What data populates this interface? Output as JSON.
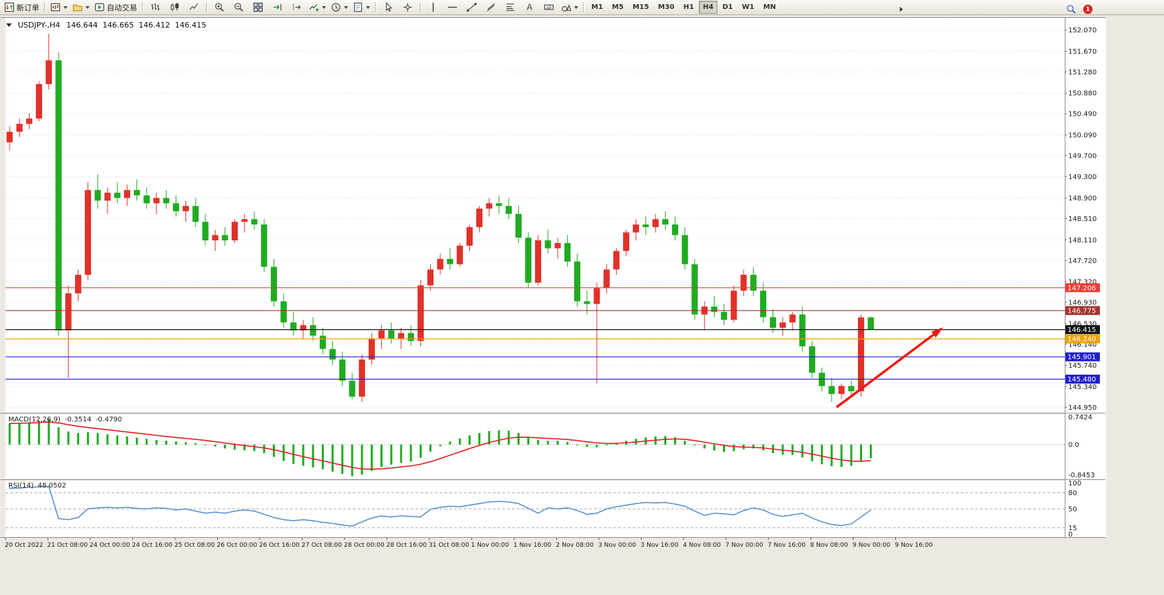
{
  "colors": {
    "window_bg": "#ece9e2",
    "chart_bg": "#ffffff",
    "grid": "#dcdcdc",
    "up": "#e0312a",
    "down": "#21ab21"
  },
  "toolbar": {
    "items": [
      {
        "name": "new-order-button",
        "icon": "new-order-icon",
        "label": "新订单"
      },
      {
        "sep": true
      },
      {
        "name": "new-chart-button",
        "icon": "new-chart-icon",
        "dropdown": true
      },
      {
        "name": "profiles-button",
        "icon": "profiles-icon",
        "dropdown": true
      },
      {
        "name": "auto-trading-button",
        "icon": "autotrade-icon",
        "label": "自动交易"
      },
      {
        "sep": true
      },
      {
        "name": "bar-chart-button",
        "icon": "bar-chart-icon"
      },
      {
        "name": "candlestick-chart-button",
        "icon": "candle-chart-icon"
      },
      {
        "name": "line-chart-button",
        "icon": "line-chart-icon"
      },
      {
        "sep": true
      },
      {
        "name": "zoom-in-button",
        "icon": "zoom-in-icon"
      },
      {
        "name": "zoom-out-button",
        "icon": "zoom-out-icon"
      },
      {
        "name": "tile-windows-button",
        "icon": "tile-windows-icon"
      },
      {
        "name": "auto-scroll-button",
        "icon": "auto-scroll-icon"
      },
      {
        "name": "chart-shift-button",
        "icon": "chart-shift-icon"
      },
      {
        "name": "indicators-button",
        "icon": "indicators-icon",
        "dropdown": true
      },
      {
        "name": "periods-button",
        "icon": "periods-icon",
        "dropdown": true
      },
      {
        "name": "templates-button",
        "icon": "templates-icon",
        "dropdown": true
      },
      {
        "sep": true
      },
      {
        "name": "cursor-button",
        "icon": "cursor-icon"
      },
      {
        "name": "crosshair-button",
        "icon": "crosshair-icon"
      },
      {
        "sep": true
      },
      {
        "name": "vertical-line-button",
        "icon": "vline-icon"
      },
      {
        "name": "horizontal-line-button",
        "icon": "hline-icon"
      },
      {
        "name": "trendline-button",
        "icon": "trendline-icon"
      },
      {
        "name": "equidistant-channel-button",
        "icon": "channel-icon"
      },
      {
        "name": "fibonacci-button",
        "icon": "fibonacci-icon"
      },
      {
        "name": "text-button",
        "icon": "text-icon"
      },
      {
        "name": "text-label-button",
        "icon": "label-icon"
      },
      {
        "name": "arrows-button",
        "icon": "shapes-icon",
        "dropdown": true
      },
      {
        "sep": true
      }
    ],
    "timeframes": [
      "M1",
      "M5",
      "M15",
      "M30",
      "H1",
      "H4",
      "D1",
      "W1",
      "MN"
    ],
    "active_timeframe": "H4",
    "notifications_badge": "1"
  },
  "chart_data": {
    "type": "candlestick",
    "title": "USDJPY-,H4",
    "symbol": "USDJPY-",
    "timeframe": "H4",
    "current_bar": {
      "open": "146.644",
      "high": "146.665",
      "low": "146.412",
      "close": "146.415"
    },
    "up_color": "#e0312a",
    "down_color": "#21ab21",
    "ylim": [
      144.85,
      152.3
    ],
    "y_ticks": [
      "152.070",
      "151.670",
      "151.280",
      "150.880",
      "150.490",
      "150.090",
      "149.700",
      "149.300",
      "148.900",
      "148.510",
      "148.110",
      "147.720",
      "147.320",
      "146.930",
      "146.530",
      "146.140",
      "145.740",
      "145.340",
      "144.950"
    ],
    "x_labels": [
      "20 Oct 2022",
      "21 Oct 08:00",
      "24 Oct 00:00",
      "24 Oct 16:00",
      "25 Oct 08:00",
      "26 Oct 00:00",
      "26 Oct 16:00",
      "27 Oct 08:00",
      "28 Oct 00:00",
      "28 Oct 16:00",
      "31 Oct 08:00",
      "1 Nov 00:00",
      "1 Nov 16:00",
      "2 Nov 08:00",
      "3 Nov 00:00",
      "3 Nov 16:00",
      "4 Nov 08:00",
      "7 Nov 00:00",
      "7 Nov 16:00",
      "8 Nov 08:00",
      "9 Nov 00:00",
      "9 Nov 16:00"
    ],
    "ohlc": [
      [
        149.95,
        150.25,
        149.8,
        150.15
      ],
      [
        150.15,
        150.4,
        150.05,
        150.3
      ],
      [
        150.3,
        150.5,
        150.2,
        150.4
      ],
      [
        150.4,
        151.1,
        150.35,
        151.05
      ],
      [
        151.05,
        152.0,
        150.95,
        151.5
      ],
      [
        151.5,
        151.65,
        146.3,
        146.4
      ],
      [
        146.4,
        147.25,
        145.5,
        147.1
      ],
      [
        147.1,
        147.55,
        146.95,
        147.45
      ],
      [
        147.45,
        149.2,
        147.35,
        149.05
      ],
      [
        149.05,
        149.35,
        148.7,
        148.85
      ],
      [
        148.85,
        149.1,
        148.6,
        149.0
      ],
      [
        149.0,
        149.2,
        148.8,
        148.9
      ],
      [
        148.9,
        149.15,
        148.75,
        149.05
      ],
      [
        149.05,
        149.25,
        148.85,
        148.95
      ],
      [
        148.95,
        149.1,
        148.7,
        148.8
      ],
      [
        148.8,
        149.0,
        148.6,
        148.9
      ],
      [
        148.9,
        149.05,
        148.7,
        148.8
      ],
      [
        148.8,
        148.95,
        148.55,
        148.65
      ],
      [
        148.65,
        148.85,
        148.45,
        148.75
      ],
      [
        148.75,
        148.9,
        148.35,
        148.45
      ],
      [
        148.45,
        148.6,
        148.0,
        148.1
      ],
      [
        148.1,
        148.3,
        147.9,
        148.2
      ],
      [
        148.2,
        148.35,
        148.0,
        148.1
      ],
      [
        148.1,
        148.5,
        148.05,
        148.45
      ],
      [
        148.45,
        148.6,
        148.25,
        148.5
      ],
      [
        148.5,
        148.65,
        148.3,
        148.4
      ],
      [
        148.4,
        148.5,
        147.5,
        147.6
      ],
      [
        147.6,
        147.75,
        146.85,
        146.95
      ],
      [
        146.95,
        147.1,
        146.45,
        146.55
      ],
      [
        146.55,
        146.75,
        146.3,
        146.4
      ],
      [
        146.4,
        146.6,
        146.25,
        146.5
      ],
      [
        146.5,
        146.65,
        146.2,
        146.3
      ],
      [
        146.3,
        146.45,
        145.95,
        146.05
      ],
      [
        146.05,
        146.2,
        145.75,
        145.85
      ],
      [
        145.85,
        146.0,
        145.35,
        145.45
      ],
      [
        145.45,
        145.6,
        145.1,
        145.15
      ],
      [
        145.15,
        145.95,
        145.05,
        145.85
      ],
      [
        145.85,
        146.35,
        145.75,
        146.25
      ],
      [
        146.25,
        146.5,
        146.05,
        146.4
      ],
      [
        146.4,
        146.55,
        146.15,
        146.25
      ],
      [
        146.25,
        146.45,
        146.05,
        146.35
      ],
      [
        146.35,
        146.5,
        146.1,
        146.2
      ],
      [
        146.2,
        147.35,
        146.1,
        147.25
      ],
      [
        147.25,
        147.65,
        147.15,
        147.55
      ],
      [
        147.55,
        147.85,
        147.45,
        147.75
      ],
      [
        147.75,
        147.95,
        147.55,
        147.65
      ],
      [
        147.65,
        148.05,
        147.6,
        148.0
      ],
      [
        148.0,
        148.4,
        147.9,
        148.35
      ],
      [
        148.35,
        148.75,
        148.25,
        148.7
      ],
      [
        148.7,
        148.9,
        148.55,
        148.8
      ],
      [
        148.8,
        148.95,
        148.6,
        148.75
      ],
      [
        148.75,
        148.9,
        148.5,
        148.6
      ],
      [
        148.6,
        148.75,
        148.05,
        148.15
      ],
      [
        148.15,
        148.25,
        147.2,
        147.3
      ],
      [
        147.3,
        148.2,
        147.25,
        148.1
      ],
      [
        148.1,
        148.3,
        147.85,
        147.95
      ],
      [
        147.95,
        148.15,
        147.75,
        148.05
      ],
      [
        148.05,
        148.2,
        147.6,
        147.7
      ],
      [
        147.7,
        147.85,
        146.85,
        146.95
      ],
      [
        146.95,
        147.15,
        146.7,
        146.9
      ],
      [
        146.9,
        147.3,
        145.4,
        147.2
      ],
      [
        147.2,
        147.65,
        147.1,
        147.55
      ],
      [
        147.55,
        147.95,
        147.45,
        147.9
      ],
      [
        147.9,
        148.3,
        147.8,
        148.25
      ],
      [
        148.25,
        148.5,
        148.1,
        148.4
      ],
      [
        148.4,
        148.55,
        148.2,
        148.35
      ],
      [
        148.35,
        148.6,
        148.25,
        148.5
      ],
      [
        148.5,
        148.65,
        148.3,
        148.4
      ],
      [
        148.4,
        148.55,
        148.1,
        148.2
      ],
      [
        148.2,
        148.35,
        147.55,
        147.65
      ],
      [
        147.65,
        147.75,
        146.6,
        146.7
      ],
      [
        146.7,
        146.95,
        146.4,
        146.85
      ],
      [
        146.85,
        147.05,
        146.65,
        146.75
      ],
      [
        146.75,
        146.9,
        146.5,
        146.6
      ],
      [
        146.6,
        147.25,
        146.55,
        147.15
      ],
      [
        147.15,
        147.55,
        147.05,
        147.45
      ],
      [
        147.45,
        147.6,
        147.05,
        147.15
      ],
      [
        147.15,
        147.3,
        146.55,
        146.65
      ],
      [
        146.65,
        146.8,
        146.35,
        146.45
      ],
      [
        146.45,
        146.65,
        146.3,
        146.55
      ],
      [
        146.55,
        146.75,
        146.4,
        146.7
      ],
      [
        146.7,
        146.85,
        146.0,
        146.1
      ],
      [
        146.1,
        146.2,
        145.5,
        145.6
      ],
      [
        145.6,
        145.7,
        145.25,
        145.35
      ],
      [
        145.35,
        145.5,
        145.05,
        145.2
      ],
      [
        145.2,
        145.4,
        145.1,
        145.35
      ],
      [
        145.35,
        145.45,
        145.15,
        145.25
      ],
      [
        145.25,
        146.7,
        145.15,
        146.644
      ],
      [
        146.644,
        146.665,
        146.412,
        146.415
      ]
    ],
    "hlines": [
      {
        "label": "147.206",
        "price": 147.206,
        "color": "#f23c32"
      },
      {
        "label": "146.775",
        "price": 146.775,
        "color": "#a83232"
      },
      {
        "label": "146.415",
        "price": 146.415,
        "color": "#141414",
        "role": "current-price"
      },
      {
        "label": "146.240",
        "price": 146.24,
        "color": "#f0a000"
      },
      {
        "label": "145.901",
        "price": 145.901,
        "color": "#2020cc"
      },
      {
        "label": "145.480",
        "price": 145.48,
        "color": "#2020cc"
      }
    ],
    "annotations": [
      {
        "type": "arrow",
        "x1_bar": 84.5,
        "price1": 144.95,
        "x2_bar": 95.2,
        "price2": 146.43,
        "color": "#f21616"
      }
    ],
    "indicators": [
      {
        "name": "MACD",
        "params": "(12,26,9)",
        "label": "MACD(12,26,9)",
        "display_main": "-0.3514",
        "display_signal": "-0.4790",
        "ylim": [
          -0.8453,
          0.7424
        ],
        "y_ticks": [
          "0.7424",
          "0.0",
          "-0.8453"
        ],
        "histogram_color": "#21ab21",
        "signal_color": "#e02020",
        "histogram": [
          0.55,
          0.56,
          0.58,
          0.62,
          0.66,
          0.45,
          0.34,
          0.3,
          0.32,
          0.3,
          0.27,
          0.24,
          0.21,
          0.18,
          0.15,
          0.12,
          0.1,
          0.08,
          0.06,
          0.04,
          0.0,
          -0.05,
          -0.1,
          -0.13,
          -0.15,
          -0.17,
          -0.22,
          -0.32,
          -0.42,
          -0.5,
          -0.55,
          -0.59,
          -0.64,
          -0.7,
          -0.76,
          -0.82,
          -0.78,
          -0.68,
          -0.58,
          -0.52,
          -0.47,
          -0.44,
          -0.34,
          -0.18,
          -0.04,
          0.08,
          0.16,
          0.24,
          0.3,
          0.35,
          0.37,
          0.36,
          0.3,
          0.18,
          0.12,
          0.1,
          0.1,
          0.07,
          0.0,
          -0.06,
          -0.07,
          -0.02,
          0.04,
          0.1,
          0.15,
          0.19,
          0.21,
          0.22,
          0.19,
          0.1,
          -0.02,
          -0.1,
          -0.15,
          -0.19,
          -0.17,
          -0.12,
          -0.1,
          -0.15,
          -0.22,
          -0.26,
          -0.27,
          -0.33,
          -0.43,
          -0.51,
          -0.56,
          -0.58,
          -0.55,
          -0.45,
          -0.3514
        ]
      },
      {
        "name": "RSI",
        "params": "(14)",
        "label": "RSI(14)",
        "display_value": "48.0502",
        "ylim": [
          0,
          100
        ],
        "levels": [
          80,
          50,
          15
        ],
        "y_ticks": [
          "100",
          "80",
          "50",
          "15",
          "0"
        ],
        "line_color": "#4f8fd0",
        "values": [
          88,
          89,
          90,
          91,
          92,
          32,
          30,
          34,
          50,
          52,
          53,
          52,
          53,
          51,
          50,
          52,
          51,
          48,
          50,
          46,
          42,
          44,
          42,
          46,
          48,
          46,
          40,
          34,
          30,
          28,
          30,
          28,
          25,
          23,
          20,
          18,
          26,
          33,
          37,
          35,
          37,
          36,
          35,
          49,
          53,
          55,
          54,
          57,
          60,
          63,
          64,
          63,
          60,
          51,
          42,
          52,
          50,
          52,
          47,
          40,
          42,
          50,
          54,
          57,
          60,
          62,
          61,
          62,
          59,
          55,
          46,
          38,
          42,
          41,
          39,
          47,
          52,
          48,
          40,
          36,
          39,
          42,
          33,
          26,
          21,
          19,
          22,
          35,
          48.05
        ]
      }
    ]
  }
}
